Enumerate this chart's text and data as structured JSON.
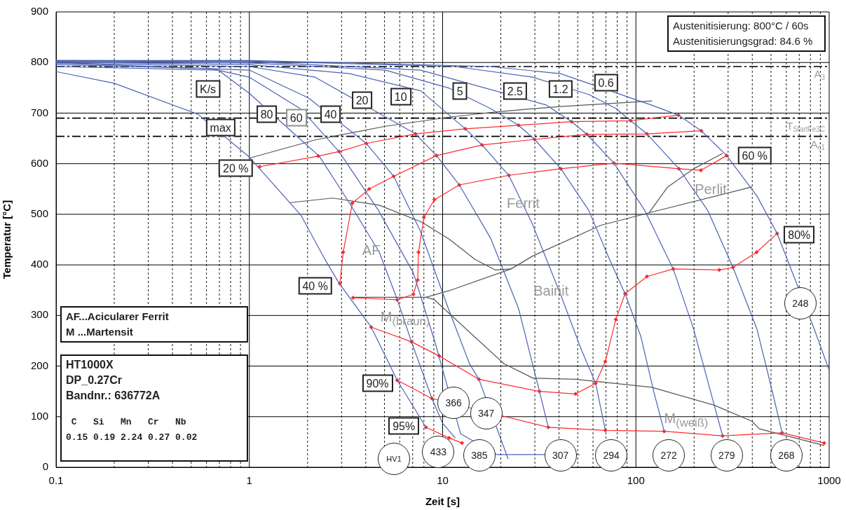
{
  "chart_data": {
    "type": "line",
    "xlabel": "Zeit [s]",
    "ylabel": "Temperatur [°C]",
    "log": "x",
    "grid": true,
    "xlim": [
      0.1,
      1000
    ],
    "ylim": [
      0,
      900
    ],
    "xticks": [
      0.1,
      {
        "value": 0.2,
        "label": null
      },
      {
        "value": 0.3,
        "label": null
      },
      {
        "value": 0.4,
        "label": null
      },
      {
        "value": 0.5,
        "label": null
      },
      {
        "value": 0.6,
        "label": null
      },
      {
        "value": 0.7,
        "label": null
      },
      {
        "value": 0.8,
        "label": null
      },
      {
        "value": 0.9,
        "label": null
      },
      1,
      {
        "value": 2,
        "label": null
      },
      {
        "value": 3,
        "label": null
      },
      {
        "value": 4,
        "label": null
      },
      {
        "value": 5,
        "label": null
      },
      {
        "value": 6,
        "label": null
      },
      {
        "value": 7,
        "label": null
      },
      {
        "value": 8,
        "label": null
      },
      {
        "value": 9,
        "label": null
      },
      10,
      {
        "value": 20,
        "label": null
      },
      {
        "value": 30,
        "label": null
      },
      {
        "value": 40,
        "label": null
      },
      {
        "value": 50,
        "label": null
      },
      {
        "value": 60,
        "label": null
      },
      {
        "value": 70,
        "label": null
      },
      {
        "value": 80,
        "label": null
      },
      {
        "value": 90,
        "label": null
      },
      100,
      {
        "value": 200,
        "label": null
      },
      {
        "value": 300,
        "label": null
      },
      {
        "value": 400,
        "label": null
      },
      {
        "value": 500,
        "label": null
      },
      {
        "value": 600,
        "label": null
      },
      {
        "value": 700,
        "label": null
      },
      {
        "value": 800,
        "label": null
      },
      {
        "value": 900,
        "label": null
      },
      1000
    ],
    "yticks": [
      0,
      100,
      200,
      300,
      400,
      500,
      600,
      700,
      800,
      900
    ],
    "series": [
      {
        "color": "#4a63b4",
        "x": [
          0.1,
          0.2,
          0.54,
          1,
          1.85,
          2.46,
          2.91,
          4.27,
          5.82,
          8.2
        ],
        "values": [
          782,
          759,
          698,
          613,
          498,
          411,
          364,
          277,
          172,
          79
        ]
      },
      {
        "color": "#4a63b4",
        "x": [
          0.1,
          0.69,
          1,
          1.85,
          2.3,
          3.3,
          4.7,
          5.82,
          6.9,
          8.8,
          10,
          11.6
        ],
        "values": [
          792,
          785,
          739,
          647,
          615,
          522,
          425,
          332,
          248,
          136,
          87,
          58
        ]
      },
      {
        "color": "#4a63b4",
        "x": [
          0.1,
          0.63,
          1,
          1.85,
          2.91,
          4.65,
          7.06,
          9.07,
          12.4,
          19.1,
          51
        ],
        "values": [
          796,
          788,
          771,
          708,
          624,
          508,
          384,
          251,
          66,
          25,
          25
        ]
      },
      {
        "color": "#4a63b4",
        "x": [
          0.1,
          1,
          2.02,
          4.03,
          5.58,
          7.67,
          10.7,
          13.8,
          15.4,
          21.8
        ],
        "values": [
          799,
          785,
          730,
          640,
          575,
          467,
          314,
          204,
          174,
          17
        ]
      },
      {
        "color": "#4a63b4",
        "x": [
          0.1,
          1,
          2.19,
          7.23,
          9.3,
          12.2,
          17.7,
          24.7,
          31.7,
          35.2
        ],
        "values": [
          799,
          792,
          771,
          659,
          616,
          558,
          453,
          314,
          150,
          79
        ]
      },
      {
        "color": "#4a63b4",
        "x": [
          0.1,
          1,
          3.3,
          7.7,
          13.1,
          16,
          22,
          29.2,
          40.7,
          52.4,
          61.9,
          69.5
        ],
        "values": [
          801,
          796,
          778,
          744,
          669,
          637,
          577,
          480,
          342,
          231,
          166,
          73
        ]
      },
      {
        "color": "#4a63b4",
        "x": [
          0.1,
          1,
          5.05,
          10.7,
          17.7,
          24.7,
          29.9,
          40.9,
          57,
          73,
          87.9,
          106,
          124,
          140
        ],
        "values": [
          803,
          799,
          785,
          750,
          709,
          676,
          648,
          590,
          508,
          411,
          343,
          259,
          148,
          71
        ]
      },
      {
        "color": "#4a63b4",
        "x": [
          0.1,
          1,
          7.7,
          34.4,
          46.5,
          55.8,
          77,
          111,
          156,
          199,
          244,
          281
        ],
        "values": [
          803,
          802,
          785,
          716,
          683,
          658,
          601,
          508,
          392,
          273,
          148,
          62
        ]
      },
      {
        "color": "#4a63b4",
        "x": [
          0.1,
          1,
          11.6,
          29.2,
          57,
          79,
          93.9,
          114,
          167,
          235,
          318,
          423,
          499,
          571
        ],
        "values": [
          804,
          803,
          792,
          771,
          737,
          709,
          685,
          659,
          590,
          508,
          395,
          273,
          162,
          68
        ]
      },
      {
        "color": "#4a63b4",
        "x": [
          0.1,
          1,
          17.7,
          40.7,
          120,
          166,
          218,
          295,
          423,
          538,
          668,
          824,
          1000
        ],
        "values": [
          804,
          804,
          792,
          778,
          716,
          696,
          665,
          616,
          536,
          462,
          370,
          280,
          192
        ]
      },
      {
        "color": "#ff2a2a",
        "marker": "diamond",
        "x": [
          1.13,
          2.27,
          2.91,
          4.03,
          7.23,
          13.1,
          24.7,
          46.5,
          93.9,
          166
        ],
        "values": [
          594,
          615,
          624,
          640,
          659,
          669,
          676,
          683,
          685,
          696
        ]
      },
      {
        "color": "#ff2a2a",
        "marker": "diamond",
        "x": [
          2.94,
          3.06,
          3.41,
          4.17,
          5.58,
          9.3,
          16,
          29.9,
          55.8,
          114,
          218
        ],
        "values": [
          363,
          425,
          522,
          550,
          575,
          616,
          637,
          648,
          658,
          659,
          665
        ]
      },
      {
        "color": "#ff2a2a",
        "marker": "diamond",
        "x": [
          3.44,
          5.82,
          7.06,
          7.43,
          7.5,
          8,
          9.07,
          12.2,
          22,
          40.9,
          77,
          167,
          217,
          295
        ],
        "values": [
          335,
          331,
          342,
          370,
          425,
          494,
          529,
          558,
          577,
          590,
          601,
          590,
          587,
          616
        ]
      },
      {
        "color": "#ff2a2a",
        "marker": "diamond",
        "x": [
          4.27,
          6.9,
          9.6,
          15.4,
          31.7,
          48.7,
          61.9,
          69.5,
          78.7,
          87.9,
          114,
          156,
          270,
          318,
          421,
          538
        ],
        "values": [
          277,
          248,
          220,
          174,
          150,
          145,
          166,
          209,
          292,
          343,
          377,
          392,
          390,
          395,
          425,
          462
        ]
      },
      {
        "color": "#ff2a2a",
        "marker": "diamond",
        "x": [
          5.82,
          8.8,
          35.2,
          69.5,
          140,
          281,
          571,
          942
        ],
        "values": [
          172,
          136,
          79,
          73,
          71,
          62,
          68,
          48
        ]
      },
      {
        "color": "#ff2a2a",
        "marker": "diamond",
        "x": [
          8.2,
          10.8,
          12.6
        ],
        "values": [
          79,
          58,
          48
        ]
      },
      {
        "color": "#555555",
        "x": [
          1,
          2.19,
          5.05,
          10.8,
          19.6,
          40.2,
          121
        ],
        "values": [
          611,
          647,
          674,
          692,
          703,
          713,
          724
        ]
      },
      {
        "color": "#555555",
        "x": [
          1.62,
          2.7,
          4.7,
          7.75,
          10.8,
          14.7,
          18.7,
          22.6
        ],
        "values": [
          523,
          532,
          518,
          485,
          451,
          411,
          390,
          392
        ]
      },
      {
        "color": "#555555",
        "x": [
          3.44,
          8.2,
          10.8,
          22.6,
          29.4,
          65.6,
          117,
          398
        ],
        "values": [
          336,
          336,
          349,
          392,
          418,
          478,
          503,
          554
        ]
      },
      {
        "color": "#555555",
        "x": [
          117,
          146,
          199,
          280
        ],
        "values": [
          503,
          554,
          590,
          620
        ]
      },
      {
        "color": "#555555",
        "x": [
          8.2,
          9.07,
          20.7,
          29.4,
          48.7,
          121,
          253,
          398,
          435,
          942
        ],
        "values": [
          336,
          331,
          205,
          176,
          174,
          158,
          123,
          91,
          76,
          43
        ]
      }
    ],
    "ref_lines": [
      {
        "axis": "y",
        "value": 792,
        "label": "A$_{3}$",
        "color": "#000000",
        "line_style": "dashed"
      },
      {
        "axis": "y",
        "value": 690,
        "label": "T$_{StartFe3C}$",
        "color": "#000000",
        "line_style": "dashed"
      },
      {
        "axis": "y",
        "value": 654,
        "label": "A$_{c1}$",
        "color": "#000000",
        "line_style": "dashed"
      }
    ],
    "annotations": [
      {
        "text": "K/s",
        "x": 0.61,
        "y": 748
      },
      {
        "text": "max",
        "x": 0.71,
        "y": 672
      },
      {
        "text": "80",
        "x": 1.23,
        "y": 698
      },
      {
        "text": "60",
        "x": 1.75,
        "y": 691
      },
      {
        "text": "40",
        "x": 2.63,
        "y": 698
      },
      {
        "text": "20",
        "x": 3.83,
        "y": 726
      },
      {
        "text": "10",
        "x": 6.07,
        "y": 732
      },
      {
        "text": "5",
        "x": 12.3,
        "y": 744
      },
      {
        "text": "2.5",
        "x": 23.7,
        "y": 744
      },
      {
        "text": "1.2",
        "x": 40.7,
        "y": 748
      },
      {
        "text": "0.6",
        "x": 70,
        "y": 760
      },
      {
        "text": "Ferrit",
        "x": 26.1,
        "y": 522
      },
      {
        "text": "M$_{(braun)}$",
        "x": 6.4,
        "y": 294
      },
      {
        "text": "366",
        "x": 11.4,
        "y": 127
      },
      {
        "text": "307",
        "x": 40.7,
        "y": 24
      },
      {
        "text": "248",
        "x": 710,
        "y": 324
      },
      "Austenitisierung: 800°C / 60s",
      "Austenitisierungsgrad: 84.6 %",
      "AF...Acicularer Ferrit",
      "M ...Martensit",
      "HT1000X",
      "DP_0.27Cr",
      "Bandnr.: 636772A",
      " C   Si   Mn   Cr   Nb",
      "0.15 0.19 2.24 0.27 0.02",
      "20 %",
      "40 %",
      "60 %",
      "Perlit",
      "AF",
      "Bainit",
      "M$_{(weiß)}$",
      "HV1",
      "433",
      "347",
      "385",
      "294",
      "272",
      "268",
      "80%",
      "90%",
      "95%",
      "279"
    ]
  }
}
